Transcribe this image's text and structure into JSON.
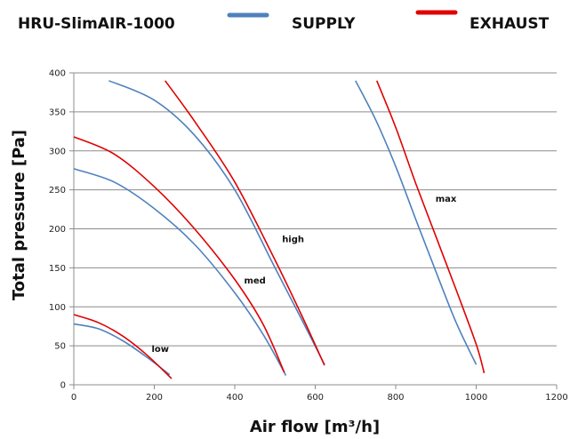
{
  "chart_data": {
    "type": "line",
    "title": "HRU-SlimAIR-1000",
    "xlabel": "Air flow [m³/h]",
    "ylabel": "Total pressure [Pa]",
    "xlim": [
      0,
      1200
    ],
    "ylim": [
      0,
      400
    ],
    "x_ticks": [
      "0",
      "200",
      "400",
      "600",
      "800",
      "1000",
      "1200"
    ],
    "y_ticks": [
      "0",
      "50",
      "100",
      "150",
      "200",
      "250",
      "300",
      "350",
      "400"
    ],
    "grid": "horizontal",
    "legend_position": "top",
    "legend": [
      {
        "name": "SUPPLY",
        "color": "#4f81bd"
      },
      {
        "name": "EXHAUST",
        "color": "#e00000"
      }
    ],
    "annotations": [
      {
        "text": "low",
        "x": 215,
        "y": 42
      },
      {
        "text": "med",
        "x": 450,
        "y": 130
      },
      {
        "text": "high",
        "x": 545,
        "y": 183
      },
      {
        "text": "max",
        "x": 925,
        "y": 235
      }
    ],
    "series": [
      {
        "group": "SUPPLY",
        "color": "#4f81bd",
        "x": [
          0,
          60,
          120,
          180,
          238
        ],
        "y": [
          78,
          72,
          57,
          36,
          13
        ]
      },
      {
        "group": "EXHAUST",
        "color": "#e00000",
        "x": [
          0,
          60,
          120,
          180,
          243
        ],
        "y": [
          90,
          80,
          63,
          39,
          8
        ]
      },
      {
        "group": "SUPPLY",
        "color": "#4f81bd",
        "x": [
          0,
          100,
          200,
          300,
          400,
          470,
          527
        ],
        "y": [
          277,
          260,
          226,
          180,
          118,
          65,
          12
        ]
      },
      {
        "group": "EXHAUST",
        "color": "#e00000",
        "x": [
          0,
          100,
          200,
          300,
          400,
          470,
          523
        ],
        "y": [
          318,
          296,
          254,
          200,
          135,
          78,
          16
        ]
      },
      {
        "group": "SUPPLY",
        "color": "#4f81bd",
        "x": [
          87,
          200,
          300,
          400,
          500,
          570,
          623
        ],
        "y": [
          390,
          365,
          320,
          250,
          150,
          80,
          26
        ]
      },
      {
        "group": "EXHAUST",
        "color": "#e00000",
        "x": [
          227,
          300,
          400,
          500,
          570,
          623
        ],
        "y": [
          390,
          338,
          260,
          160,
          85,
          25
        ]
      },
      {
        "group": "SUPPLY",
        "color": "#4f81bd",
        "x": [
          700,
          750,
          800,
          850,
          900,
          950,
          1000
        ],
        "y": [
          390,
          340,
          280,
          212,
          145,
          80,
          26
        ]
      },
      {
        "group": "EXHAUST",
        "color": "#e00000",
        "x": [
          753,
          800,
          850,
          900,
          950,
          1000,
          1020
        ],
        "y": [
          390,
          330,
          258,
          190,
          122,
          52,
          15
        ]
      }
    ]
  }
}
